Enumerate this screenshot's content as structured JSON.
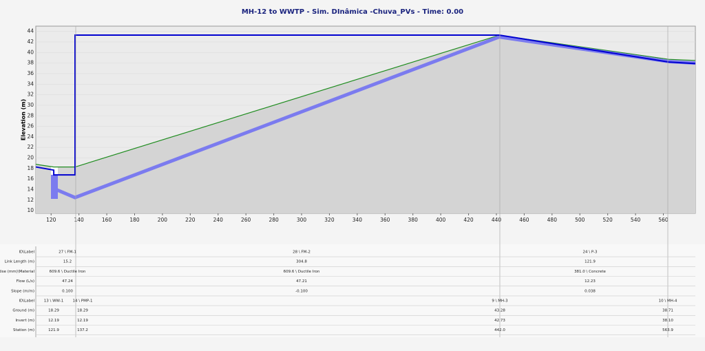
{
  "chart_data": {
    "type": "profile",
    "title": "MH-12 to WWTP - Sim. DInâmica -Chuva_PVs - Time: 0.00",
    "y_label": "Elevation (m)",
    "xlim": [
      109,
      583
    ],
    "ylim": [
      9.5,
      45
    ],
    "xticks": [
      120,
      140,
      160,
      180,
      200,
      220,
      240,
      260,
      280,
      300,
      320,
      340,
      360,
      380,
      400,
      420,
      440,
      460,
      480,
      500,
      520,
      540,
      560
    ],
    "yticks": [
      10,
      12,
      14,
      16,
      18,
      20,
      22,
      24,
      26,
      28,
      30,
      32,
      34,
      36,
      38,
      40,
      42,
      44
    ],
    "series": [
      {
        "color": "#1e8c1e",
        "x": [
          109,
          121.9,
          137.2,
          442,
          563.9,
          583
        ],
        "values": [
          18.8,
          18.29,
          18.29,
          43.28,
          38.71,
          38.5
        ],
        "width": 1.2
      },
      {
        "color": "#7b7bef",
        "x": [
          121.9,
          137.2,
          442,
          563.9,
          583
        ],
        "values": [
          14.2,
          12.5,
          42.95,
          38.3,
          38.0
        ],
        "width": 5
      },
      {
        "color": "#0000d0",
        "x": [
          109,
          121.9,
          121.9,
          137.2,
          137.2,
          442,
          563.9,
          583
        ],
        "values": [
          18.3,
          17.7,
          16.8,
          16.8,
          43.3,
          43.3,
          38.2,
          37.9
        ],
        "width": 2
      }
    ]
  },
  "links": {
    "rows": [
      [
        "ID\\Label",
        "27 \\ FM-1",
        "28 \\ FM-2",
        "24 \\ P-3"
      ],
      [
        "Link Length (m)",
        "15.2",
        "304.8",
        "121.9"
      ],
      [
        "Rise (mm)\\Material",
        "609.6 \\ Ductile Iron",
        "609.6 \\ Ductile Iron",
        "381.0 \\ Concrete"
      ],
      [
        "Flow (L/s)",
        "47.24",
        "47.21",
        "12.23"
      ],
      [
        "Slope (m/m)",
        "0.100",
        "-0.100",
        "0.038"
      ]
    ]
  },
  "nodes": {
    "rows": [
      [
        "ID\\Label",
        "13 \\ WW-1",
        "14 \\ PMP-1",
        "9 \\ MH-3",
        "10 \\ MH-4"
      ],
      [
        "Ground (m)",
        "18.29",
        "18.29",
        "43.28",
        "38.71"
      ],
      [
        "Invert (m)",
        "12.19",
        "12.19",
        "42.73",
        "38.10"
      ],
      [
        "Station (m)",
        "121.9",
        "137.2",
        "442.0",
        "563.9"
      ]
    ]
  }
}
